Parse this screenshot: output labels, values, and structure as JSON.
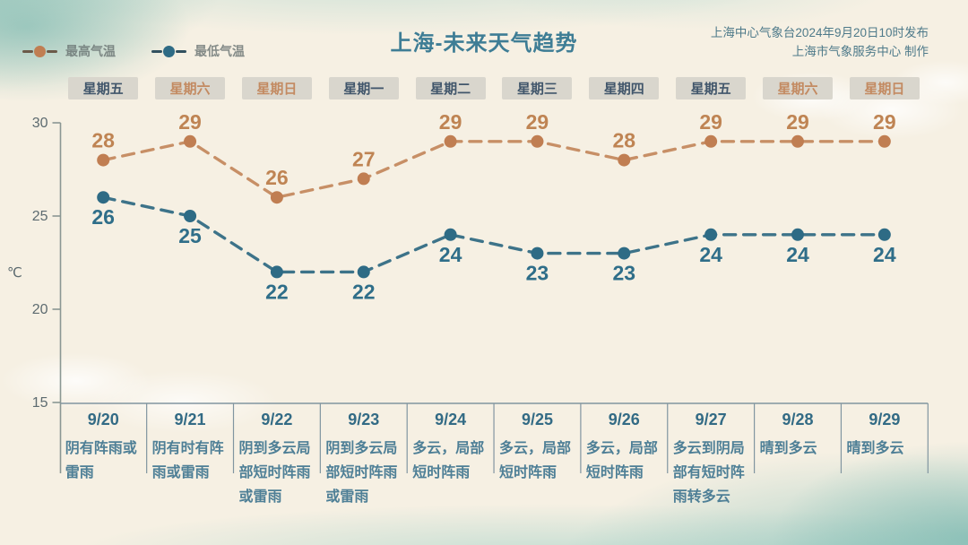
{
  "title": "上海-未来天气趋势",
  "source": {
    "line1": "上海中心气象台2024年9月20日10时发布",
    "line2": "上海市气象服务中心 制作"
  },
  "legend": {
    "max": {
      "label": "最高气温",
      "dot_color": "#c07e52",
      "line_color": "#6b5a49"
    },
    "min": {
      "label": "最低气温",
      "dot_color": "#2e6b85",
      "line_color": "#31505f"
    }
  },
  "chart_data": {
    "type": "line",
    "title": "上海-未来天气趋势",
    "ylabel": "℃",
    "ylim": [
      15,
      30
    ],
    "yticks": [
      30,
      25,
      20,
      15
    ],
    "grid": false,
    "legend_position": "top-left",
    "line_style": "dashed",
    "categories": [
      "9/20",
      "9/21",
      "9/22",
      "9/23",
      "9/24",
      "9/25",
      "9/26",
      "9/27",
      "9/28",
      "9/29"
    ],
    "weekdays": [
      "星期五",
      "星期六",
      "星期日",
      "星期一",
      "星期二",
      "星期三",
      "星期四",
      "星期五",
      "星期六",
      "星期日"
    ],
    "weekend": [
      false,
      true,
      true,
      false,
      false,
      false,
      false,
      false,
      true,
      true
    ],
    "series": [
      {
        "name": "最高气温",
        "color": "#c78f66",
        "dot_color": "#c07e52",
        "label_color": "#bf8453",
        "values": [
          28,
          29,
          26,
          27,
          29,
          29,
          28,
          29,
          29,
          29
        ]
      },
      {
        "name": "最低气温",
        "color": "#3d7389",
        "dot_color": "#2e6b85",
        "label_color": "#2f6e89",
        "values": [
          26,
          25,
          22,
          22,
          24,
          23,
          23,
          24,
          24,
          24
        ]
      }
    ],
    "descriptions": [
      "阴有阵雨或雷雨",
      "阴有时有阵雨或雷雨",
      "阴到多云局部短时阵雨或雷雨",
      "阴到多云局部短时阵雨或雷雨",
      "多云，局部短时阵雨",
      "多云，局部短时阵雨",
      "多云，局部短时阵雨",
      "多云到阴局部有短时阵雨转多云",
      "晴到多云",
      "晴到多云"
    ]
  },
  "styles": {
    "background": "#f6f0e3",
    "title_color": "#3e7d95",
    "source_color": "#4e7a8a",
    "axis_color": "#8a9793",
    "tick_label_color": "#5d6b70",
    "table_line_color": "#8195a0",
    "date_color": "#336b85",
    "desc_color": "#4e7f96",
    "weekday_color": "#41566b",
    "weekend_color": "#c38a61",
    "chip_bg": "#d9d6cd"
  }
}
